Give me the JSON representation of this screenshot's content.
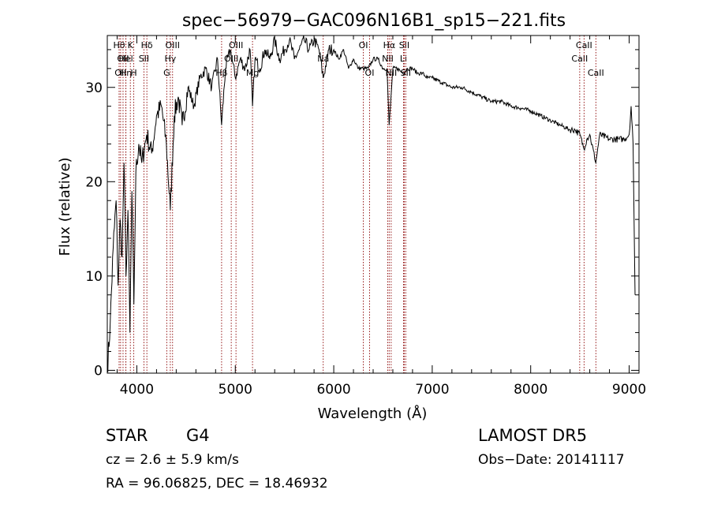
{
  "chart_data": {
    "type": "line",
    "title": "spec−56979−GAC096N16B1_sp15−221.fits",
    "xlabel": "Wavelength (Å)",
    "ylabel": "Flux (relative)",
    "xlim": [
      3700,
      9100
    ],
    "ylim": [
      -0.3,
      35.5
    ],
    "x_ticks": [
      4000,
      5000,
      6000,
      7000,
      8000,
      9000
    ],
    "y_ticks": [
      0,
      10,
      20,
      30
    ],
    "grid": false,
    "line_color": "#000000",
    "marker_color": "#8b0000",
    "series": [
      {
        "x": [
          3700,
          3730,
          3760,
          3790,
          3810,
          3830,
          3850,
          3870,
          3890,
          3910,
          3930,
          3950,
          3970,
          3990,
          4020,
          4050,
          4100,
          4150,
          4200,
          4250,
          4300,
          4340,
          4380,
          4420,
          4460,
          4520,
          4580,
          4640,
          4700,
          4760,
          4820,
          4861,
          4900,
          4950,
          5000,
          5050,
          5100,
          5150,
          5175,
          5200,
          5250,
          5300,
          5350,
          5400,
          5450,
          5500,
          5550,
          5600,
          5650,
          5700,
          5750,
          5800,
          5850,
          5893,
          5950,
          6000,
          6050,
          6100,
          6150,
          6200,
          6250,
          6300,
          6350,
          6400,
          6450,
          6500,
          6540,
          6563,
          6600,
          6650,
          6700,
          6750,
          6800,
          6850,
          6900,
          6950,
          7000,
          7100,
          7200,
          7300,
          7400,
          7500,
          7600,
          7700,
          7800,
          7900,
          8000,
          8100,
          8200,
          8300,
          8400,
          8450,
          8500,
          8540,
          8570,
          8600,
          8662,
          8700,
          8800,
          8900,
          8950,
          9000,
          9020,
          9040,
          9060
        ],
        "values": [
          0,
          5,
          13,
          18,
          9,
          16,
          12,
          22,
          10,
          17,
          4,
          19,
          7,
          21,
          24,
          22,
          25,
          23,
          27,
          28,
          24,
          17,
          27,
          29,
          26,
          30,
          28,
          31,
          32,
          30,
          33,
          26,
          32,
          34,
          31,
          33,
          32,
          34,
          28,
          33,
          32,
          34,
          33,
          35,
          33,
          34,
          35,
          33,
          34,
          35,
          34,
          35,
          34,
          31,
          34,
          34,
          33,
          34,
          32,
          33,
          32,
          32,
          32,
          33,
          33,
          32,
          32,
          26,
          32,
          32,
          31.5,
          32,
          32,
          31.5,
          31.5,
          31,
          31,
          30.5,
          30,
          30,
          29.5,
          29,
          28.5,
          28.5,
          28,
          27.8,
          27.5,
          27,
          26.5,
          26,
          25.5,
          25.5,
          25,
          23.5,
          24.5,
          25,
          22,
          25,
          24.5,
          24.5,
          24.5,
          25,
          28,
          24,
          8
        ]
      }
    ],
    "lines": [
      {
        "x": 3820,
        "label": "Hθ",
        "row": 0
      },
      {
        "x": 3860,
        "label": "OII",
        "row": 1
      },
      {
        "x": 3835,
        "label": "OII",
        "row": 2
      },
      {
        "x": 3889,
        "label": "Hel",
        "row": 1
      },
      {
        "x": 3889,
        "label": "Hη",
        "row": 2
      },
      {
        "x": 3934,
        "label": "K",
        "row": 0
      },
      {
        "x": 3969,
        "label": "H",
        "row": 2
      },
      {
        "x": 4072,
        "label": "SII",
        "row": 1
      },
      {
        "x": 4102,
        "label": "Hδ",
        "row": 0
      },
      {
        "x": 4304,
        "label": "G",
        "row": 2
      },
      {
        "x": 4340,
        "label": "Hγ",
        "row": 1
      },
      {
        "x": 4363,
        "label": "OIII",
        "row": 0
      },
      {
        "x": 4861,
        "label": "Hβ",
        "row": 2
      },
      {
        "x": 4959,
        "label": "OIII",
        "row": 1
      },
      {
        "x": 5007,
        "label": "OIII",
        "row": 0
      },
      {
        "x": 5175,
        "label": "Mg",
        "row": 2
      },
      {
        "x": 5893,
        "label": "Na",
        "row": 1
      },
      {
        "x": 6300,
        "label": "OI",
        "row": 0
      },
      {
        "x": 6364,
        "label": "OI",
        "row": 2
      },
      {
        "x": 6548,
        "label": "NII",
        "row": 1
      },
      {
        "x": 6563,
        "label": "Hα",
        "row": 0
      },
      {
        "x": 6583,
        "label": "NII",
        "row": 2
      },
      {
        "x": 6708,
        "label": "Li",
        "row": 1
      },
      {
        "x": 6716,
        "label": "SII",
        "row": 0
      },
      {
        "x": 6731,
        "label": "SII",
        "row": 2
      },
      {
        "x": 8498,
        "label": "CaII",
        "row": 1
      },
      {
        "x": 8542,
        "label": "CaII",
        "row": 0
      },
      {
        "x": 8662,
        "label": "CaII",
        "row": 2
      }
    ]
  },
  "info": {
    "class": "STAR",
    "subclass": "G4",
    "survey": "LAMOST DR5",
    "cz": "cz = 2.6 ± 5.9 km/s",
    "obs_date": "Obs−Date: 20141117",
    "radec": "RA =  96.06825, DEC =  18.46932"
  }
}
